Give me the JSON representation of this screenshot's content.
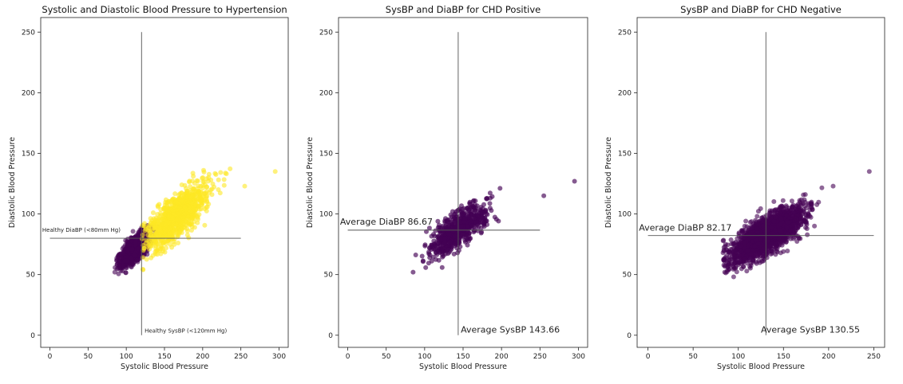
{
  "chart_data": [
    {
      "type": "scatter",
      "title": "Systolic and Diastolic Blood Pressure to Hypertension",
      "xlabel": "Systolic Blood Pressure",
      "ylabel": "Diastolic Blood Pressure",
      "xlim": [
        -12,
        312
      ],
      "ylim": [
        -10,
        262
      ],
      "xticks": [
        0,
        50,
        100,
        150,
        200,
        250,
        300
      ],
      "yticks": [
        0,
        50,
        100,
        150,
        200,
        250
      ],
      "grid": false,
      "reference_lines": [
        {
          "orientation": "vertical",
          "x": 120,
          "y_range": [
            0,
            250
          ]
        },
        {
          "orientation": "horizontal",
          "y": 80,
          "x_range": [
            0,
            250
          ]
        }
      ],
      "annotations": [
        {
          "text": "Healthy DiaBP (<80mm Hg)",
          "x": -10,
          "y": 84
        },
        {
          "text": "Healthy SysBP (<120mm Hg)",
          "x": 124,
          "y": 1
        }
      ],
      "series": [
        {
          "color": "#440154",
          "opacity": 0.6,
          "center": [
            112,
            72
          ],
          "spread": [
            9,
            7
          ],
          "extent": [
            83,
            148,
            48,
            100
          ],
          "count": 1400
        },
        {
          "color": "#fde725",
          "opacity": 0.6,
          "center": [
            165,
            98
          ],
          "spread": [
            20,
            13
          ],
          "extent": [
            120,
            295,
            50,
            143
          ],
          "count": 1000
        }
      ]
    },
    {
      "type": "scatter",
      "title": "SysBP and DiaBP for CHD Positive",
      "xlabel": "Systolic Blood Pressure",
      "ylabel": "Diastolic Blood Pressure",
      "xlim": [
        -12,
        312
      ],
      "ylim": [
        -10,
        262
      ],
      "xticks": [
        0,
        50,
        100,
        150,
        200,
        250,
        300
      ],
      "yticks": [
        0,
        50,
        100,
        150,
        200,
        250
      ],
      "grid": false,
      "reference_lines": [
        {
          "orientation": "vertical",
          "x": 143.66,
          "y_range": [
            0,
            250
          ]
        },
        {
          "orientation": "horizontal",
          "y": 86.67,
          "x_range": [
            0,
            250
          ]
        }
      ],
      "annotations": [
        {
          "text": "Average DiaBP 86.67",
          "x": -10,
          "y": 90
        },
        {
          "text": "Average SysBP 143.66",
          "x": 147,
          "y": 1
        }
      ],
      "series": [
        {
          "color": "#440154",
          "opacity": 0.65,
          "center": [
            143.66,
            86.67
          ],
          "spread": [
            20,
            11
          ],
          "extent": [
            83,
            295,
            48,
            135
          ],
          "count": 650
        }
      ]
    },
    {
      "type": "scatter",
      "title": "SysBP and DiaBP for CHD Negative",
      "xlabel": "Systolic Blood Pressure",
      "ylabel": "Diastolic Blood Pressure",
      "xlim": [
        -12,
        262
      ],
      "ylim": [
        -10,
        262
      ],
      "xticks": [
        0,
        50,
        100,
        150,
        200,
        250
      ],
      "yticks": [
        0,
        50,
        100,
        150,
        200,
        250
      ],
      "grid": false,
      "reference_lines": [
        {
          "orientation": "vertical",
          "x": 130.55,
          "y_range": [
            0,
            250
          ]
        },
        {
          "orientation": "horizontal",
          "y": 82.17,
          "x_range": [
            0,
            250
          ]
        }
      ],
      "annotations": [
        {
          "text": "Average DiaBP 82.17",
          "x": -10,
          "y": 85
        },
        {
          "text": "Average SysBP 130.55",
          "x": 125,
          "y": 1
        }
      ],
      "series": [
        {
          "color": "#440154",
          "opacity": 0.6,
          "center": [
            130.55,
            82.17
          ],
          "spread": [
            20,
            11
          ],
          "extent": [
            83,
            245,
            48,
            143
          ],
          "count": 2200
        }
      ]
    }
  ]
}
